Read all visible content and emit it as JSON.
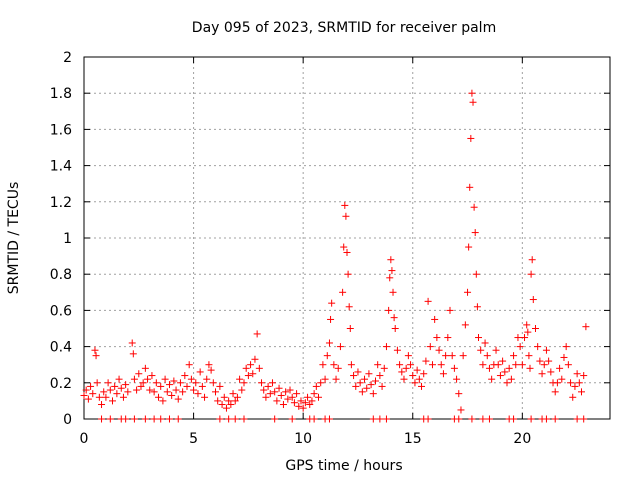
{
  "chart_data": {
    "type": "scatter",
    "title": "Day 095 of 2023, SRMTID for receiver palm",
    "xlabel": "GPS time / hours",
    "ylabel": "SRMTID / TECUs",
    "xlim": [
      0,
      24
    ],
    "ylim": [
      0,
      2
    ],
    "xticks": [
      0,
      5,
      10,
      15,
      20
    ],
    "xtick_labels": [
      "0",
      "5",
      "10",
      "15",
      "20"
    ],
    "yticks": [
      0,
      0.2,
      0.4,
      0.6,
      0.8,
      1,
      1.2,
      1.4,
      1.6,
      1.8,
      2
    ],
    "ytick_labels": [
      "0",
      "0.2",
      "0.4",
      "0.6",
      "0.8",
      "1",
      "1.2",
      "1.4",
      "1.6",
      "1.8",
      "2"
    ],
    "grid": true,
    "marker": "+",
    "color": "#ff0000",
    "series": [
      {
        "name": "SRMTID",
        "points": [
          [
            0.0,
            0.13
          ],
          [
            0.1,
            0.16
          ],
          [
            0.2,
            0.11
          ],
          [
            0.3,
            0.18
          ],
          [
            0.4,
            0.14
          ],
          [
            0.5,
            0.38
          ],
          [
            0.55,
            0.35
          ],
          [
            0.6,
            0.2
          ],
          [
            0.7,
            0.12
          ],
          [
            0.8,
            0.08
          ],
          [
            0.9,
            0.15
          ],
          [
            1.0,
            0.12
          ],
          [
            1.1,
            0.2
          ],
          [
            1.2,
            0.16
          ],
          [
            1.3,
            0.1
          ],
          [
            1.4,
            0.18
          ],
          [
            1.5,
            0.14
          ],
          [
            1.6,
            0.22
          ],
          [
            1.7,
            0.17
          ],
          [
            1.8,
            0.12
          ],
          [
            1.9,
            0.19
          ],
          [
            2.0,
            0.15
          ],
          [
            2.2,
            0.42
          ],
          [
            2.25,
            0.36
          ],
          [
            2.3,
            0.22
          ],
          [
            2.4,
            0.16
          ],
          [
            2.5,
            0.25
          ],
          [
            2.6,
            0.18
          ],
          [
            2.7,
            0.2
          ],
          [
            2.8,
            0.28
          ],
          [
            2.9,
            0.22
          ],
          [
            3.0,
            0.16
          ],
          [
            3.1,
            0.24
          ],
          [
            3.2,
            0.15
          ],
          [
            3.3,
            0.2
          ],
          [
            3.4,
            0.12
          ],
          [
            3.5,
            0.18
          ],
          [
            3.6,
            0.1
          ],
          [
            3.7,
            0.22
          ],
          [
            3.8,
            0.15
          ],
          [
            3.9,
            0.19
          ],
          [
            4.0,
            0.13
          ],
          [
            4.1,
            0.21
          ],
          [
            4.2,
            0.16
          ],
          [
            4.3,
            0.11
          ],
          [
            4.4,
            0.2
          ],
          [
            4.5,
            0.15
          ],
          [
            4.6,
            0.24
          ],
          [
            4.7,
            0.18
          ],
          [
            4.8,
            0.3
          ],
          [
            4.9,
            0.22
          ],
          [
            5.0,
            0.16
          ],
          [
            5.1,
            0.2
          ],
          [
            5.2,
            0.14
          ],
          [
            5.3,
            0.26
          ],
          [
            5.4,
            0.18
          ],
          [
            5.5,
            0.12
          ],
          [
            5.6,
            0.22
          ],
          [
            5.7,
            0.3
          ],
          [
            5.8,
            0.27
          ],
          [
            5.9,
            0.2
          ],
          [
            6.0,
            0.15
          ],
          [
            6.1,
            0.1
          ],
          [
            6.2,
            0.18
          ],
          [
            6.3,
            0.08
          ],
          [
            6.4,
            0.12
          ],
          [
            6.5,
            0.06
          ],
          [
            6.6,
            0.1
          ],
          [
            6.7,
            0.08
          ],
          [
            6.8,
            0.14
          ],
          [
            6.9,
            0.1
          ],
          [
            7.0,
            0.12
          ],
          [
            7.1,
            0.22
          ],
          [
            7.2,
            0.16
          ],
          [
            7.3,
            0.2
          ],
          [
            7.4,
            0.28
          ],
          [
            7.5,
            0.24
          ],
          [
            7.6,
            0.3
          ],
          [
            7.7,
            0.25
          ],
          [
            7.8,
            0.33
          ],
          [
            7.9,
            0.47
          ],
          [
            8.0,
            0.28
          ],
          [
            8.1,
            0.2
          ],
          [
            8.2,
            0.16
          ],
          [
            8.3,
            0.12
          ],
          [
            8.4,
            0.18
          ],
          [
            8.5,
            0.14
          ],
          [
            8.6,
            0.2
          ],
          [
            8.7,
            0.15
          ],
          [
            8.8,
            0.1
          ],
          [
            8.9,
            0.17
          ],
          [
            9.0,
            0.13
          ],
          [
            9.1,
            0.08
          ],
          [
            9.2,
            0.15
          ],
          [
            9.3,
            0.11
          ],
          [
            9.4,
            0.16
          ],
          [
            9.5,
            0.12
          ],
          [
            9.6,
            0.09
          ],
          [
            9.7,
            0.14
          ],
          [
            9.8,
            0.07
          ],
          [
            9.9,
            0.1
          ],
          [
            10.0,
            0.06
          ],
          [
            10.1,
            0.09
          ],
          [
            10.2,
            0.12
          ],
          [
            10.3,
            0.08
          ],
          [
            10.4,
            0.1
          ],
          [
            10.5,
            0.14
          ],
          [
            10.6,
            0.18
          ],
          [
            10.7,
            0.12
          ],
          [
            10.8,
            0.2
          ],
          [
            10.9,
            0.3
          ],
          [
            11.0,
            0.22
          ],
          [
            11.1,
            0.35
          ],
          [
            11.2,
            0.42
          ],
          [
            11.25,
            0.55
          ],
          [
            11.3,
            0.64
          ],
          [
            11.4,
            0.3
          ],
          [
            11.5,
            0.22
          ],
          [
            11.6,
            0.28
          ],
          [
            11.7,
            0.4
          ],
          [
            11.8,
            0.7
          ],
          [
            11.85,
            0.95
          ],
          [
            11.9,
            1.18
          ],
          [
            11.95,
            1.12
          ],
          [
            12.0,
            0.92
          ],
          [
            12.05,
            0.8
          ],
          [
            12.1,
            0.62
          ],
          [
            12.15,
            0.5
          ],
          [
            12.2,
            0.3
          ],
          [
            12.3,
            0.24
          ],
          [
            12.4,
            0.18
          ],
          [
            12.5,
            0.26
          ],
          [
            12.6,
            0.2
          ],
          [
            12.7,
            0.15
          ],
          [
            12.8,
            0.22
          ],
          [
            12.9,
            0.17
          ],
          [
            13.0,
            0.25
          ],
          [
            13.1,
            0.19
          ],
          [
            13.2,
            0.14
          ],
          [
            13.3,
            0.21
          ],
          [
            13.4,
            0.3
          ],
          [
            13.5,
            0.24
          ],
          [
            13.6,
            0.18
          ],
          [
            13.7,
            0.28
          ],
          [
            13.8,
            0.4
          ],
          [
            13.9,
            0.6
          ],
          [
            13.95,
            0.78
          ],
          [
            14.0,
            0.88
          ],
          [
            14.05,
            0.82
          ],
          [
            14.1,
            0.7
          ],
          [
            14.15,
            0.56
          ],
          [
            14.2,
            0.5
          ],
          [
            14.3,
            0.38
          ],
          [
            14.4,
            0.3
          ],
          [
            14.5,
            0.26
          ],
          [
            14.6,
            0.22
          ],
          [
            14.7,
            0.28
          ],
          [
            14.8,
            0.35
          ],
          [
            14.9,
            0.3
          ],
          [
            15.0,
            0.24
          ],
          [
            15.1,
            0.2
          ],
          [
            15.2,
            0.27
          ],
          [
            15.3,
            0.22
          ],
          [
            15.4,
            0.18
          ],
          [
            15.5,
            0.25
          ],
          [
            15.6,
            0.32
          ],
          [
            15.7,
            0.65
          ],
          [
            15.8,
            0.4
          ],
          [
            15.9,
            0.3
          ],
          [
            16.0,
            0.55
          ],
          [
            16.1,
            0.45
          ],
          [
            16.2,
            0.38
          ],
          [
            16.3,
            0.3
          ],
          [
            16.4,
            0.25
          ],
          [
            16.5,
            0.35
          ],
          [
            16.6,
            0.45
          ],
          [
            16.7,
            0.6
          ],
          [
            16.8,
            0.35
          ],
          [
            16.9,
            0.28
          ],
          [
            17.0,
            0.22
          ],
          [
            17.1,
            0.14
          ],
          [
            17.2,
            0.05
          ],
          [
            17.3,
            0.35
          ],
          [
            17.4,
            0.52
          ],
          [
            17.5,
            0.7
          ],
          [
            17.55,
            0.95
          ],
          [
            17.6,
            1.28
          ],
          [
            17.65,
            1.55
          ],
          [
            17.7,
            1.8
          ],
          [
            17.75,
            1.75
          ],
          [
            17.8,
            1.17
          ],
          [
            17.85,
            1.03
          ],
          [
            17.9,
            0.8
          ],
          [
            17.95,
            0.62
          ],
          [
            18.0,
            0.45
          ],
          [
            18.1,
            0.38
          ],
          [
            18.2,
            0.3
          ],
          [
            18.3,
            0.42
          ],
          [
            18.4,
            0.35
          ],
          [
            18.5,
            0.28
          ],
          [
            18.6,
            0.22
          ],
          [
            18.7,
            0.3
          ],
          [
            18.8,
            0.38
          ],
          [
            18.9,
            0.3
          ],
          [
            19.0,
            0.24
          ],
          [
            19.1,
            0.32
          ],
          [
            19.2,
            0.26
          ],
          [
            19.3,
            0.2
          ],
          [
            19.4,
            0.28
          ],
          [
            19.5,
            0.22
          ],
          [
            19.6,
            0.35
          ],
          [
            19.7,
            0.3
          ],
          [
            19.8,
            0.45
          ],
          [
            19.9,
            0.4
          ],
          [
            20.0,
            0.3
          ],
          [
            20.1,
            0.45
          ],
          [
            20.2,
            0.52
          ],
          [
            20.25,
            0.48
          ],
          [
            20.3,
            0.35
          ],
          [
            20.35,
            0.28
          ],
          [
            20.4,
            0.8
          ],
          [
            20.45,
            0.88
          ],
          [
            20.5,
            0.66
          ],
          [
            20.6,
            0.5
          ],
          [
            20.7,
            0.4
          ],
          [
            20.8,
            0.32
          ],
          [
            20.9,
            0.25
          ],
          [
            21.0,
            0.3
          ],
          [
            21.1,
            0.38
          ],
          [
            21.2,
            0.32
          ],
          [
            21.3,
            0.26
          ],
          [
            21.4,
            0.2
          ],
          [
            21.5,
            0.15
          ],
          [
            21.6,
            0.2
          ],
          [
            21.7,
            0.28
          ],
          [
            21.8,
            0.22
          ],
          [
            21.9,
            0.34
          ],
          [
            22.0,
            0.4
          ],
          [
            22.1,
            0.3
          ],
          [
            22.2,
            0.2
          ],
          [
            22.3,
            0.12
          ],
          [
            22.4,
            0.18
          ],
          [
            22.5,
            0.25
          ],
          [
            22.6,
            0.2
          ],
          [
            22.7,
            0.15
          ],
          [
            22.8,
            0.24
          ],
          [
            22.9,
            0.51
          ]
        ],
        "zeros": [
          0.8,
          1.2,
          1.7,
          1.9,
          2.3,
          2.8,
          3.2,
          3.5,
          3.9,
          4.3,
          6.2,
          6.6,
          6.9,
          7.3,
          8.7,
          9.5,
          10.3,
          10.5,
          11.0,
          11.2,
          13.2,
          13.5,
          13.8,
          15.5,
          15.7,
          16.9,
          17.1,
          17.7,
          18.2,
          18.5,
          19.4,
          19.6,
          20.4,
          20.9,
          21.1,
          21.5,
          22.5,
          22.8
        ]
      }
    ]
  }
}
